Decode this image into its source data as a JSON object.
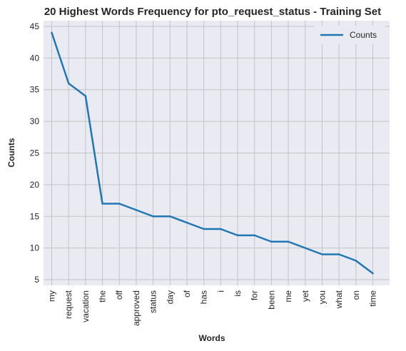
{
  "chart_data": {
    "type": "line",
    "title": "20 Highest Words Frequency for pto_request_status - Training Set",
    "xlabel": "Words",
    "ylabel": "Counts",
    "categories": [
      "my",
      "request",
      "vacation",
      "the",
      "off",
      "approved",
      "status",
      "day",
      "of",
      "has",
      "i",
      "is",
      "for",
      "been",
      "me",
      "yet",
      "you",
      "what",
      "on",
      "time"
    ],
    "series": [
      {
        "name": "Counts",
        "values": [
          44,
          36,
          34,
          17,
          17,
          16,
          15,
          15,
          14,
          13,
          13,
          12,
          12,
          11,
          11,
          10,
          9,
          9,
          8,
          6
        ],
        "color": "#1f77b4"
      }
    ],
    "y_ticks": [
      5,
      10,
      15,
      20,
      25,
      30,
      35,
      40,
      45
    ],
    "ylim": [
      4.1,
      45.9
    ],
    "grid": true,
    "legend_position": "top-right",
    "background": "#eaeaf2",
    "grid_color": "#c4c4c4"
  }
}
